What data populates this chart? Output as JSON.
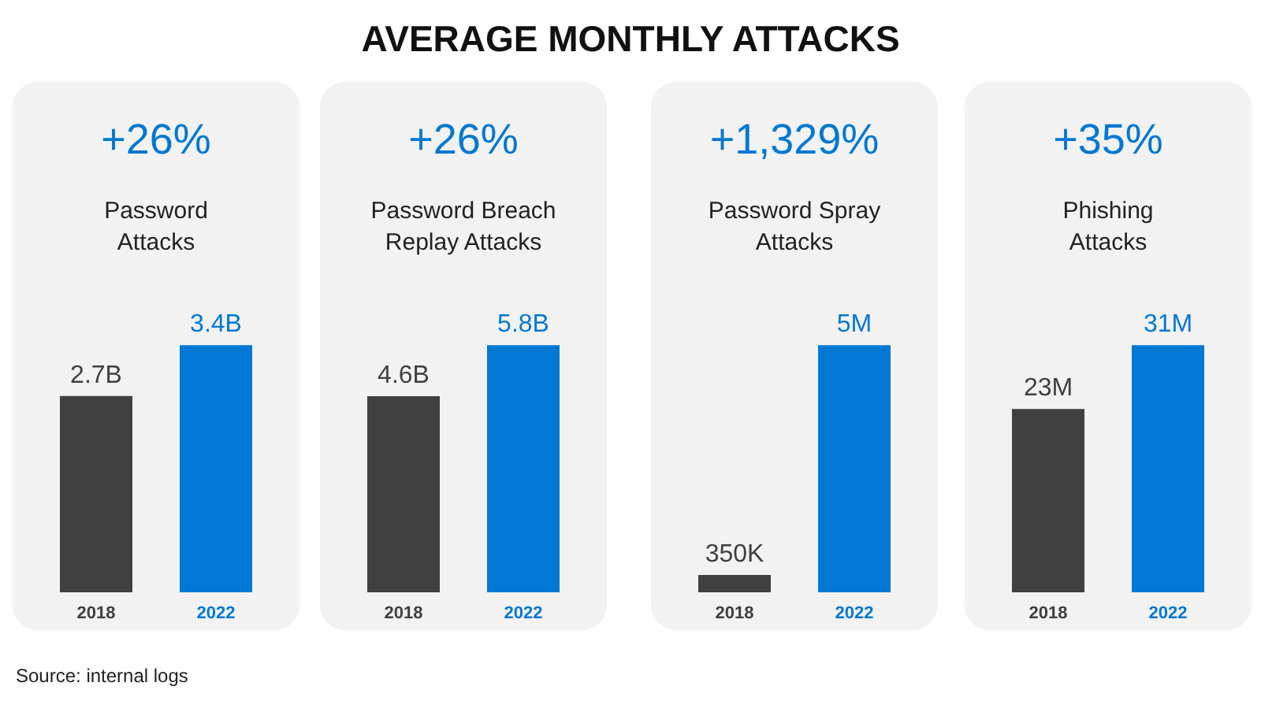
{
  "chart_data": [
    {
      "type": "other",
      "title": "AVERAGE MONTHLY ATTACKS",
      "annotations": [
        "Source: internal logs"
      ]
    },
    {
      "type": "bar",
      "title": "+26%",
      "subtitle": "Password\nAttacks",
      "categories": [
        "2018",
        "2022"
      ],
      "values": [
        2700000000,
        3400000000
      ],
      "value_labels": [
        "2.7B",
        "3.4B"
      ],
      "colors": [
        "#404040",
        "#0078d4"
      ]
    },
    {
      "type": "bar",
      "title": "+26%",
      "subtitle": "Password Breach\nReplay Attacks",
      "categories": [
        "2018",
        "2022"
      ],
      "values": [
        4600000000,
        5800000000
      ],
      "value_labels": [
        "4.6B",
        "5.8B"
      ],
      "colors": [
        "#404040",
        "#0078d4"
      ]
    },
    {
      "type": "bar",
      "title": "+1,329%",
      "subtitle": "Password Spray\nAttacks",
      "categories": [
        "2018",
        "2022"
      ],
      "values": [
        350000,
        5000000
      ],
      "value_labels": [
        "350K",
        "5M"
      ],
      "colors": [
        "#404040",
        "#0078d4"
      ]
    },
    {
      "type": "bar",
      "title": "+35%",
      "subtitle": "Phishing\nAttacks",
      "categories": [
        "2018",
        "2022"
      ],
      "values": [
        23000000,
        31000000
      ],
      "value_labels": [
        "23M",
        "31M"
      ],
      "colors": [
        "#404040",
        "#0078d4"
      ]
    }
  ]
}
